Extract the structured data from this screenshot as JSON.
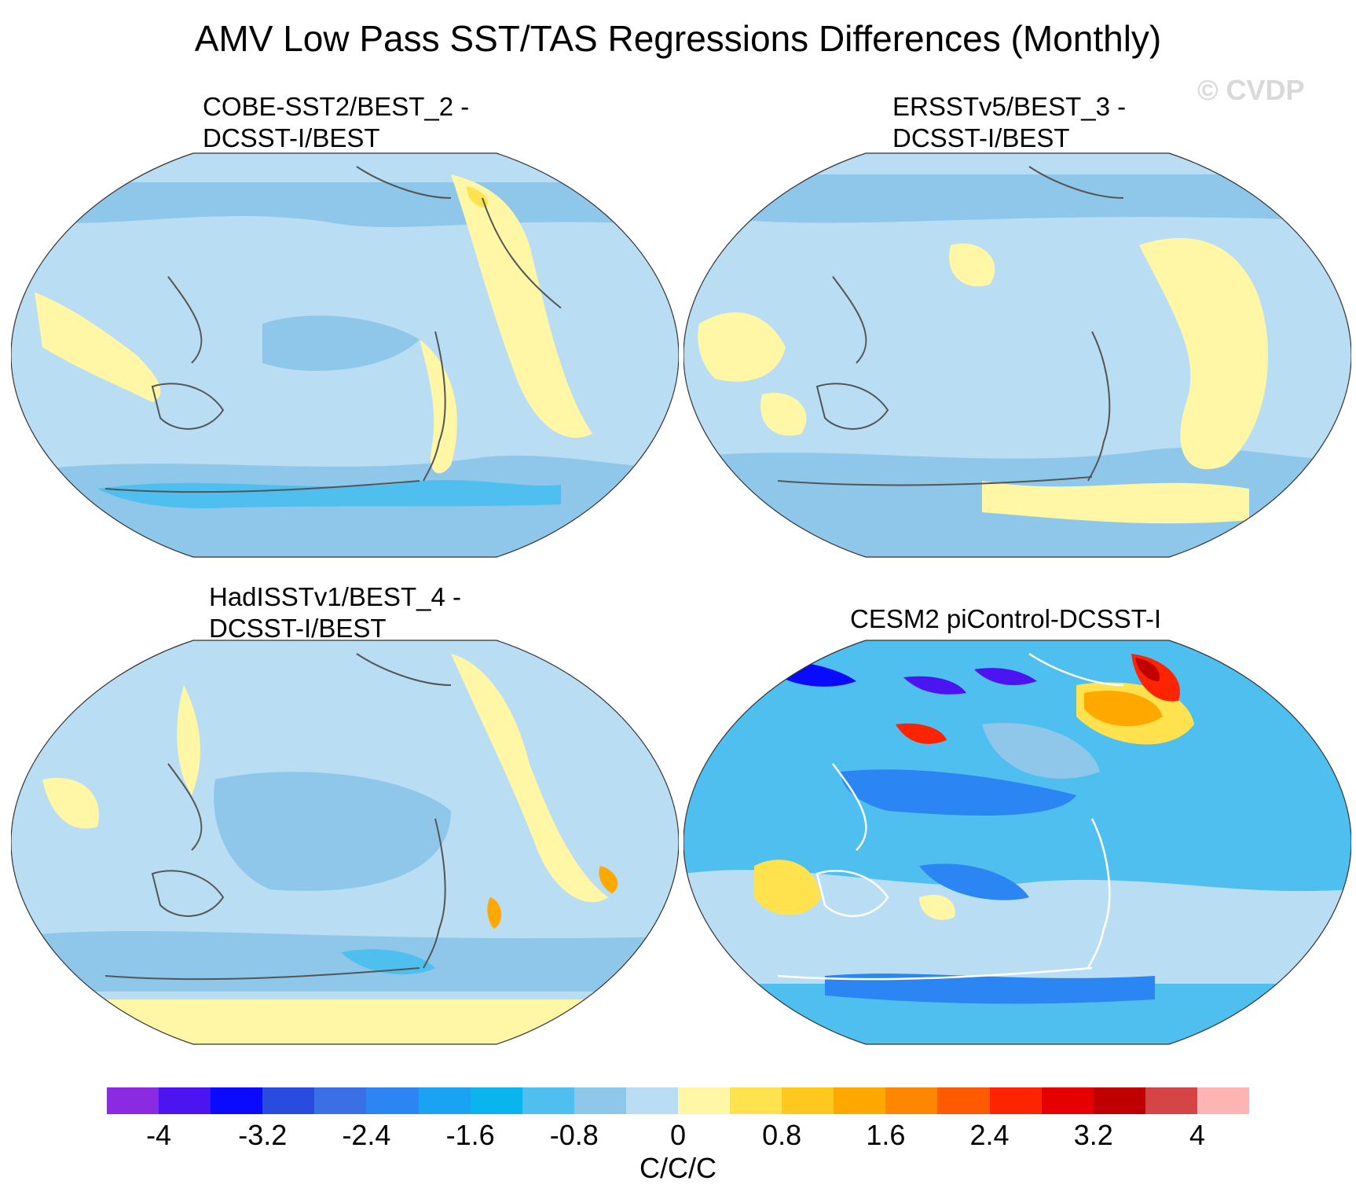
{
  "title": "AMV Low Pass SST/TAS Regressions Differences (Monthly)",
  "watermark": "© CVDP",
  "panels": [
    {
      "line1": "COBE-SST2/BEST_2 -",
      "line2": "DCSST-I/BEST"
    },
    {
      "line1": "ERSSTv5/BEST_3 -",
      "line2": "DCSST-I/BEST"
    },
    {
      "line1": "HadISSTv1/BEST_4 -",
      "line2": "DCSST-I/BEST"
    },
    {
      "line1": "CESM2 piControl-DCSST-I",
      "line2": ""
    }
  ],
  "colorbar": {
    "colors": [
      "#8a2be2",
      "#4b14f0",
      "#0a0aff",
      "#2a4be0",
      "#3a6fe6",
      "#2b85f2",
      "#1aa3f2",
      "#0ab5ee",
      "#4fbfef",
      "#8fc7ea",
      "#b9ddf3",
      "#fff6a6",
      "#ffe24d",
      "#ffc81f",
      "#ffa800",
      "#ff8600",
      "#ff5a00",
      "#ff2400",
      "#e60000",
      "#c00000",
      "#d64545",
      "#ffb4b4"
    ],
    "ticks": [
      "-4",
      "-3.2",
      "-2.4",
      "-1.6",
      "-0.8",
      "0",
      "0.8",
      "1.6",
      "2.4",
      "3.2",
      "4"
    ],
    "units": "C/C/C"
  },
  "map_colors": {
    "base": "#b9ddf3",
    "neg1": "#8fc7ea",
    "neg2": "#4fbfef",
    "neg3": "#0ab5ee",
    "neg4": "#2b85f2",
    "neg5": "#0a0aff",
    "neg6": "#4b14f0",
    "pos1": "#fff6a6",
    "pos2": "#ffe24d",
    "pos3": "#ffa800",
    "pos4": "#ff2400",
    "pos5": "#c00000",
    "coast": "#555555"
  }
}
